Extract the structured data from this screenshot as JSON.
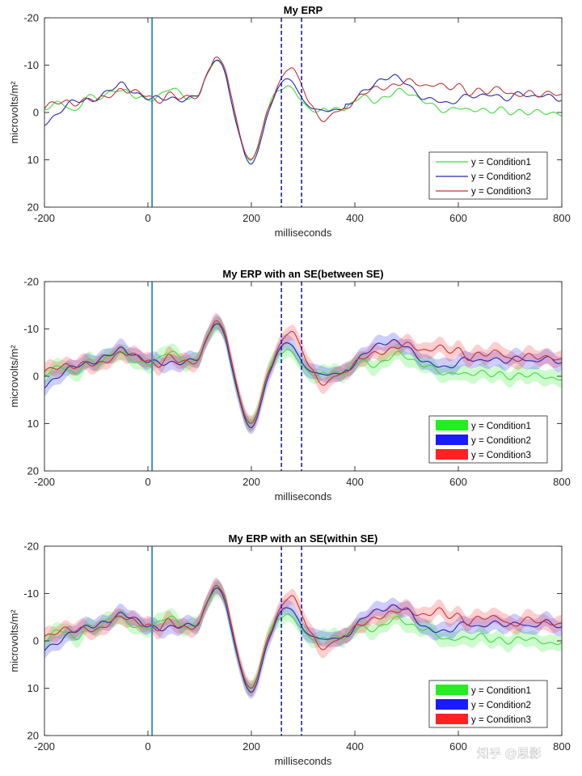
{
  "watermark": "知乎 @思影",
  "chart_data": [
    {
      "type": "line",
      "title": "My ERP",
      "xlabel": "milliseconds",
      "ylabel": "microvolts/m²",
      "xlim": [
        -200,
        800
      ],
      "ylim": [
        20,
        -20
      ],
      "y_reversed": true,
      "xticks": [
        "-200",
        "0",
        "200",
        "400",
        "600",
        "800"
      ],
      "yticks": [
        "-20",
        "-10",
        "0",
        "10",
        "20"
      ],
      "vertical_markers": [
        {
          "x": 8,
          "style": "solid",
          "color": "#2a8fb8"
        },
        {
          "x": 258,
          "style": "dashed",
          "color": "#1f1fa8"
        },
        {
          "x": 297,
          "style": "dashed",
          "color": "#1f1fa8"
        }
      ],
      "legend": {
        "position": "bottom-right",
        "style": "line"
      },
      "series": [
        {
          "name": "y = Condition1",
          "color": "#3ddc3d",
          "se": 0
        },
        {
          "name": "y = Condition2",
          "color": "#2828b0",
          "se": 0
        },
        {
          "name": "y = Condition3",
          "color": "#c03535",
          "se": 0
        }
      ]
    },
    {
      "type": "line",
      "title": "My ERP with an SE(between SE)",
      "xlabel": "milliseconds",
      "ylabel": "microvolts/m²",
      "xlim": [
        -200,
        800
      ],
      "ylim": [
        20,
        -20
      ],
      "y_reversed": true,
      "xticks": [
        "-200",
        "0",
        "200",
        "400",
        "600",
        "800"
      ],
      "yticks": [
        "-20",
        "-10",
        "0",
        "10",
        "20"
      ],
      "vertical_markers": [
        {
          "x": 8,
          "style": "solid",
          "color": "#2a8fb8"
        },
        {
          "x": 258,
          "style": "dashed",
          "color": "#1f1fa8"
        },
        {
          "x": 297,
          "style": "dashed",
          "color": "#1f1fa8"
        }
      ],
      "legend": {
        "position": "bottom-right",
        "style": "patch"
      },
      "series": [
        {
          "name": "y = Condition1",
          "color": "#3ddc3d",
          "band_color": "#22ee22",
          "se": 1.3
        },
        {
          "name": "y = Condition2",
          "color": "#2828b0",
          "band_color": "#1a1aff",
          "se": 1.3
        },
        {
          "name": "y = Condition3",
          "color": "#c03535",
          "band_color": "#ff2222",
          "se": 1.3
        }
      ]
    },
    {
      "type": "line",
      "title": "My ERP with an SE(within SE)",
      "xlabel": "milliseconds",
      "ylabel": "microvolts/m²",
      "xlim": [
        -200,
        800
      ],
      "ylim": [
        20,
        -20
      ],
      "y_reversed": true,
      "xticks": [
        "-200",
        "0",
        "200",
        "400",
        "600",
        "800"
      ],
      "yticks": [
        "-20",
        "-10",
        "0",
        "10",
        "20"
      ],
      "vertical_markers": [
        {
          "x": 8,
          "style": "solid",
          "color": "#2a8fb8"
        },
        {
          "x": 258,
          "style": "dashed",
          "color": "#1f1fa8"
        },
        {
          "x": 297,
          "style": "dashed",
          "color": "#1f1fa8"
        }
      ],
      "legend": {
        "position": "bottom-right",
        "style": "patch"
      },
      "series": [
        {
          "name": "y = Condition1",
          "color": "#3ddc3d",
          "band_color": "#22ee22",
          "se": 1.3
        },
        {
          "name": "y = Condition2",
          "color": "#2828b0",
          "band_color": "#1a1aff",
          "se": 1.3
        },
        {
          "name": "y = Condition3",
          "color": "#c03535",
          "band_color": "#ff2222",
          "se": 1.3
        }
      ]
    }
  ],
  "waveforms": {
    "x": [
      -200,
      -180,
      -160,
      -140,
      -120,
      -100,
      -80,
      -60,
      -50,
      -40,
      -20,
      0,
      20,
      40,
      60,
      80,
      100,
      110,
      120,
      130,
      140,
      150,
      160,
      170,
      180,
      190,
      200,
      210,
      220,
      230,
      240,
      250,
      260,
      270,
      280,
      290,
      300,
      310,
      320,
      330,
      340,
      350,
      360,
      380,
      400,
      420,
      440,
      460,
      480,
      500,
      520,
      540,
      560,
      580,
      600,
      620,
      640,
      660,
      680,
      700,
      720,
      740,
      760,
      780,
      800
    ],
    "Condition1": [
      -0.5,
      -2,
      -2,
      0,
      -3,
      -3,
      -4,
      -5,
      -4.5,
      -4,
      -3,
      -3,
      -3.5,
      -5,
      -4,
      -3,
      -4,
      -7,
      -9,
      -11,
      -10.5,
      -8,
      -3,
      2,
      6,
      9,
      10,
      8,
      4,
      0,
      -3,
      -4.5,
      -5,
      -5.5,
      -5,
      -3.5,
      -2,
      -1,
      -0.3,
      -0.2,
      -0.8,
      -0.5,
      -1,
      -0.5,
      -2.5,
      -3,
      -2.5,
      -3.5,
      -4.5,
      -4,
      -3,
      -2.5,
      -1,
      0,
      -1,
      -0.5,
      -1,
      0,
      -0.5,
      0,
      -0.5,
      0,
      0,
      0.5,
      0
    ],
    "Condition2": [
      2,
      1,
      -1,
      -2.5,
      -2.8,
      -3,
      -4,
      -5.5,
      -6,
      -5.5,
      -4,
      -3,
      -2.8,
      -3,
      -3,
      -3,
      -4,
      -7,
      -9.5,
      -11,
      -10.5,
      -8,
      -3,
      2,
      6,
      9.5,
      11,
      9,
      5,
      1,
      -2,
      -5,
      -6.5,
      -7,
      -6.5,
      -4.5,
      -2.5,
      -1.5,
      -0.8,
      -0.5,
      -0.5,
      -0.3,
      -0.5,
      -1,
      -3,
      -5,
      -6,
      -7,
      -7.5,
      -6.5,
      -4,
      -2.5,
      -2.5,
      -2,
      -3,
      -3.5,
      -3,
      -4,
      -3.5,
      -3,
      -4,
      -3,
      -4,
      -3.5,
      -2.5
    ],
    "Condition3": [
      -0.8,
      -2,
      -2.5,
      -2,
      -2.5,
      -2.5,
      -3.5,
      -4.5,
      -5,
      -4.5,
      -4,
      -3.5,
      -2.5,
      -4,
      -3,
      -3,
      -4,
      -7,
      -9.5,
      -11.5,
      -11,
      -9,
      -4,
      1,
      5.5,
      9,
      10,
      8,
      4,
      0,
      -2.5,
      -5.5,
      -7.5,
      -9,
      -9.5,
      -7.5,
      -5,
      -2.5,
      -1,
      1,
      1.8,
      1,
      0,
      -1,
      -2.5,
      -4,
      -5,
      -5.5,
      -6,
      -6.5,
      -6,
      -5.5,
      -6.5,
      -5,
      -5.5,
      -4,
      -5,
      -4.5,
      -5,
      -3.5,
      -4,
      -4.5,
      -3.5,
      -4,
      -3.5
    ]
  }
}
